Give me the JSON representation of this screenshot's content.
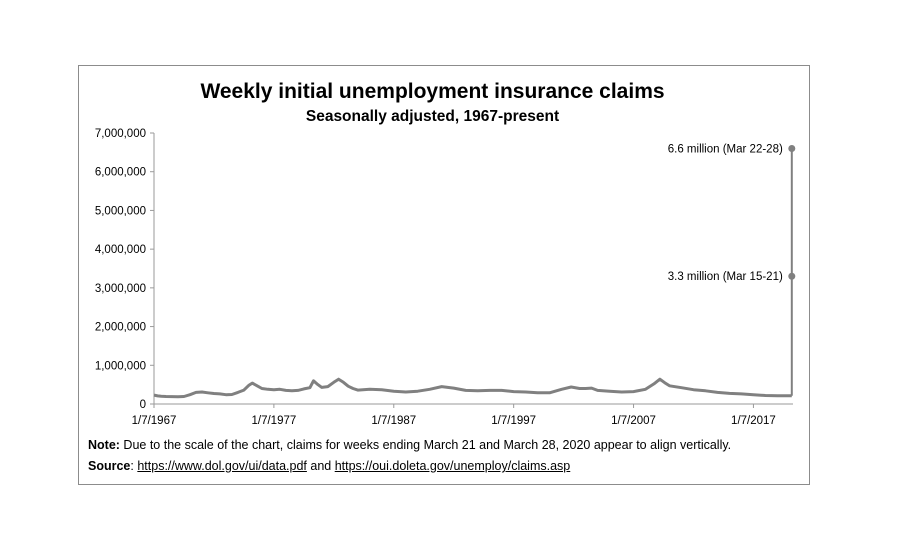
{
  "chart_data": {
    "type": "line",
    "title": "Weekly initial unemployment insurance claims",
    "subtitle": "Seasonally adjusted, 1967-present",
    "y_ticks": [
      "7,000,000",
      "6,000,000",
      "5,000,000",
      "4,000,000",
      "3,000,000",
      "2,000,000",
      "1,000,000",
      "0"
    ],
    "x_ticks": [
      "1/7/1967",
      "1/7/1977",
      "1/7/1987",
      "1/7/1997",
      "1/7/2007",
      "1/7/2017"
    ],
    "ylim": [
      0,
      7000000
    ],
    "xlim": [
      1967.0,
      2020.3
    ],
    "grid": false,
    "series": [
      {
        "color": "#808080",
        "points": [
          [
            1967.0,
            230000
          ],
          [
            1967.3,
            210000
          ],
          [
            1967.6,
            200000
          ],
          [
            1968.0,
            195000
          ],
          [
            1968.5,
            190000
          ],
          [
            1969.0,
            185000
          ],
          [
            1969.5,
            195000
          ],
          [
            1970.0,
            240000
          ],
          [
            1970.5,
            300000
          ],
          [
            1971.0,
            310000
          ],
          [
            1971.5,
            290000
          ],
          [
            1972.0,
            270000
          ],
          [
            1972.5,
            260000
          ],
          [
            1973.0,
            240000
          ],
          [
            1973.5,
            245000
          ],
          [
            1974.0,
            300000
          ],
          [
            1974.5,
            360000
          ],
          [
            1974.9,
            480000
          ],
          [
            1975.2,
            540000
          ],
          [
            1975.6,
            470000
          ],
          [
            1976.0,
            400000
          ],
          [
            1976.5,
            380000
          ],
          [
            1977.0,
            370000
          ],
          [
            1977.5,
            380000
          ],
          [
            1978.0,
            350000
          ],
          [
            1978.5,
            340000
          ],
          [
            1979.0,
            350000
          ],
          [
            1979.5,
            390000
          ],
          [
            1980.0,
            420000
          ],
          [
            1980.3,
            600000
          ],
          [
            1980.6,
            520000
          ],
          [
            1981.0,
            430000
          ],
          [
            1981.5,
            450000
          ],
          [
            1982.0,
            560000
          ],
          [
            1982.4,
            640000
          ],
          [
            1982.8,
            560000
          ],
          [
            1983.2,
            460000
          ],
          [
            1983.6,
            400000
          ],
          [
            1984.0,
            360000
          ],
          [
            1985.0,
            380000
          ],
          [
            1986.0,
            370000
          ],
          [
            1987.0,
            330000
          ],
          [
            1988.0,
            310000
          ],
          [
            1989.0,
            330000
          ],
          [
            1990.0,
            380000
          ],
          [
            1991.0,
            450000
          ],
          [
            1991.5,
            430000
          ],
          [
            1992.0,
            410000
          ],
          [
            1993.0,
            350000
          ],
          [
            1994.0,
            340000
          ],
          [
            1995.0,
            350000
          ],
          [
            1996.0,
            350000
          ],
          [
            1997.0,
            320000
          ],
          [
            1998.0,
            310000
          ],
          [
            1999.0,
            290000
          ],
          [
            2000.0,
            290000
          ],
          [
            2001.0,
            380000
          ],
          [
            2001.8,
            440000
          ],
          [
            2002.5,
            400000
          ],
          [
            2003.0,
            400000
          ],
          [
            2003.5,
            410000
          ],
          [
            2004.0,
            350000
          ],
          [
            2005.0,
            330000
          ],
          [
            2006.0,
            310000
          ],
          [
            2007.0,
            320000
          ],
          [
            2008.0,
            380000
          ],
          [
            2008.7,
            520000
          ],
          [
            2009.2,
            640000
          ],
          [
            2009.6,
            550000
          ],
          [
            2010.0,
            470000
          ],
          [
            2011.0,
            420000
          ],
          [
            2012.0,
            370000
          ],
          [
            2013.0,
            340000
          ],
          [
            2014.0,
            300000
          ],
          [
            2015.0,
            275000
          ],
          [
            2016.0,
            260000
          ],
          [
            2017.0,
            240000
          ],
          [
            2018.0,
            220000
          ],
          [
            2019.0,
            215000
          ],
          [
            2020.0,
            211000
          ],
          [
            2020.2,
            211000
          ]
        ]
      }
    ],
    "spike": {
      "points": [
        [
          2020.2,
          211000
        ],
        [
          2020.2,
          3300000
        ],
        [
          2020.2,
          6600000
        ]
      ],
      "annotations": [
        "3.3 million (Mar 15-21)",
        "6.6 million (Mar 22-28)"
      ]
    }
  },
  "notes": {
    "note_label": "Note:",
    "note_text": " Due to the scale of the chart, claims for weeks ending March 21 and March 28, 2020  appear to align vertically.",
    "source_label": "Source",
    "source_colon": ": ",
    "source_link1": "https://www.dol.gov/ui/data.pdf",
    "source_and": "  and ",
    "source_link2": "https://oui.doleta.gov/unemploy/claims.asp"
  }
}
